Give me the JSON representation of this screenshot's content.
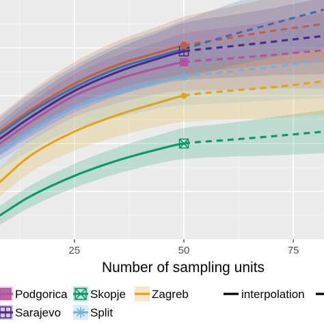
{
  "chart_data": {
    "type": "line",
    "xlabel": "Number of sampling units",
    "ylabel": "",
    "title": "",
    "xlim": [
      8,
      82
    ],
    "ylim": [
      0,
      100
    ],
    "x_ticks": [
      25,
      50,
      75
    ],
    "grid": true,
    "legend_position": "bottom",
    "observed_x": 50,
    "series": [
      {
        "name": "Podgorica",
        "color": "#b5529f",
        "marker": "square",
        "x": [
          8,
          15,
          25,
          35,
          45,
          50,
          60,
          70,
          82
        ],
        "y": [
          40,
          49,
          60,
          67,
          72,
          74,
          75.5,
          77,
          79
        ],
        "band": [
          7,
          8,
          9,
          10,
          11,
          12,
          13,
          14,
          16
        ]
      },
      {
        "name": "Sarajevo",
        "color": "#4b2a88",
        "marker": "square-plus",
        "x": [
          8,
          15,
          25,
          35,
          45,
          50,
          60,
          70,
          82
        ],
        "y": [
          42,
          51,
          62,
          70,
          76,
          78.5,
          80.5,
          82.5,
          85
        ],
        "band": [
          7,
          8,
          9,
          10,
          11,
          12,
          13,
          14,
          16
        ]
      },
      {
        "name": "Skopje",
        "color": "#0a9a6a",
        "marker": "square-x",
        "x": [
          8,
          15,
          25,
          35,
          45,
          50,
          60,
          70,
          82
        ],
        "y": [
          10,
          18,
          26.5,
          33,
          38,
          40,
          41.5,
          43,
          45
        ],
        "band": [
          4,
          4.5,
          5,
          5.5,
          6,
          6.5,
          7,
          8,
          9
        ]
      },
      {
        "name": "Split",
        "color": "#6fb3de",
        "marker": "asterisk",
        "x": [
          8,
          15,
          25,
          35,
          45,
          50,
          60,
          70,
          82
        ],
        "y": [
          36,
          45,
          55,
          61,
          66,
          68,
          70,
          72,
          75
        ],
        "band": [
          7,
          8,
          9,
          10,
          11,
          12,
          13,
          14,
          16
        ]
      },
      {
        "name": "Zagreb",
        "color": "#e0a418",
        "marker": "line",
        "x": [
          8,
          15,
          25,
          35,
          45,
          50,
          60,
          70,
          82
        ],
        "y": [
          24,
          35,
          45,
          52,
          57.5,
          60,
          62,
          63.5,
          66
        ],
        "band": [
          6,
          7,
          8,
          9,
          10,
          11,
          12,
          13,
          14
        ]
      },
      {
        "name": "",
        "color": "#c0613b",
        "marker": "circle",
        "x": [
          8,
          15,
          25,
          35,
          45,
          50,
          60,
          70,
          82
        ],
        "y": [
          45,
          54,
          65,
          73,
          78.5,
          81,
          84,
          87,
          90
        ],
        "band": [
          7,
          8,
          9,
          10,
          11,
          12,
          13,
          14,
          16
        ]
      },
      {
        "name": "",
        "color": "#3b6fb0",
        "marker": "none",
        "x": [
          8,
          15,
          25,
          35,
          45,
          50,
          60,
          70,
          82
        ],
        "y": [
          44,
          53,
          63.5,
          71.5,
          77,
          79.5,
          85,
          90,
          96
        ],
        "band": [
          7,
          8,
          9,
          10,
          11,
          12,
          13,
          14,
          16
        ]
      }
    ],
    "line_types": [
      {
        "name": "interpolation",
        "style": "solid"
      },
      {
        "name": "",
        "style": "dashed"
      }
    ]
  }
}
